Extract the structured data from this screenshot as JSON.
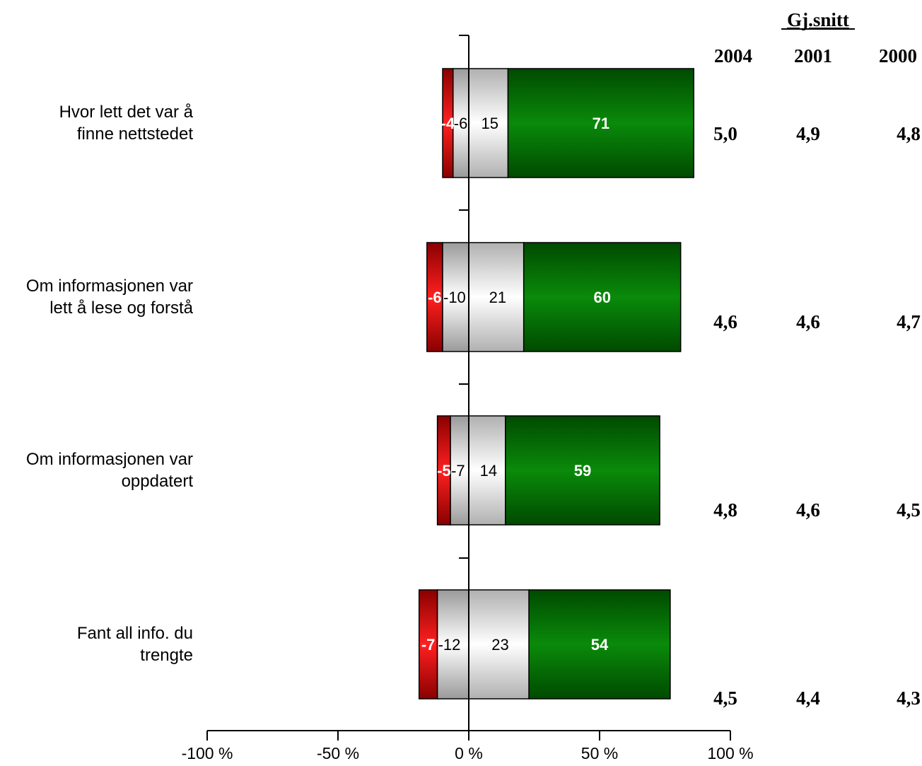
{
  "chart_data": {
    "type": "bar",
    "orientation": "horizontal",
    "stacked": true,
    "diverging": true,
    "categories": [
      "Hvor lett det var å finne nettstedet",
      "Om informasjonen var lett å lese og forstå",
      "Om informasjonen var oppdatert",
      "Fant all info. du trengte"
    ],
    "category_lines": [
      [
        "Hvor lett det var å",
        "finne nettstedet"
      ],
      [
        "Om informasjonen var",
        "lett å lese og forstå"
      ],
      [
        "Om informasjonen var",
        "oppdatert"
      ],
      [
        "Fant all info. du",
        "trengte"
      ]
    ],
    "series": [
      {
        "values": [
          -4,
          -6,
          -5,
          -7
        ],
        "labels": [
          "-4",
          "-6",
          "-5",
          "-7"
        ],
        "color": "#cc1010"
      },
      {
        "values": [
          -6,
          -10,
          -7,
          -12
        ],
        "labels": [
          "-6",
          "-10",
          "-7",
          "-12"
        ],
        "color": "#d8d8d8"
      },
      {
        "values": [
          15,
          21,
          14,
          23
        ],
        "labels": [
          "15",
          "21",
          "14",
          "23"
        ],
        "color": "#e6e6e6"
      },
      {
        "values": [
          71,
          60,
          59,
          54
        ],
        "labels": [
          "71",
          "60",
          "59",
          "54"
        ],
        "color": "#0a7a0a"
      }
    ],
    "xlim": [
      -100,
      100
    ],
    "xticks": [
      -100,
      -50,
      0,
      50,
      100
    ],
    "xtick_labels": [
      "-100 %",
      "-50 %",
      "0 %",
      "50 %",
      "100 %"
    ],
    "grid": false,
    "averages": {
      "header": "Gj.snitt",
      "years": [
        "2004",
        "2001",
        "2000"
      ],
      "rows": [
        [
          "5,0",
          "4,9",
          "4,8"
        ],
        [
          "4,6",
          "4,6",
          "4,7"
        ],
        [
          "4,8",
          "4,6",
          "4,5"
        ],
        [
          "4,5",
          "4,4",
          "4,3"
        ]
      ]
    }
  }
}
